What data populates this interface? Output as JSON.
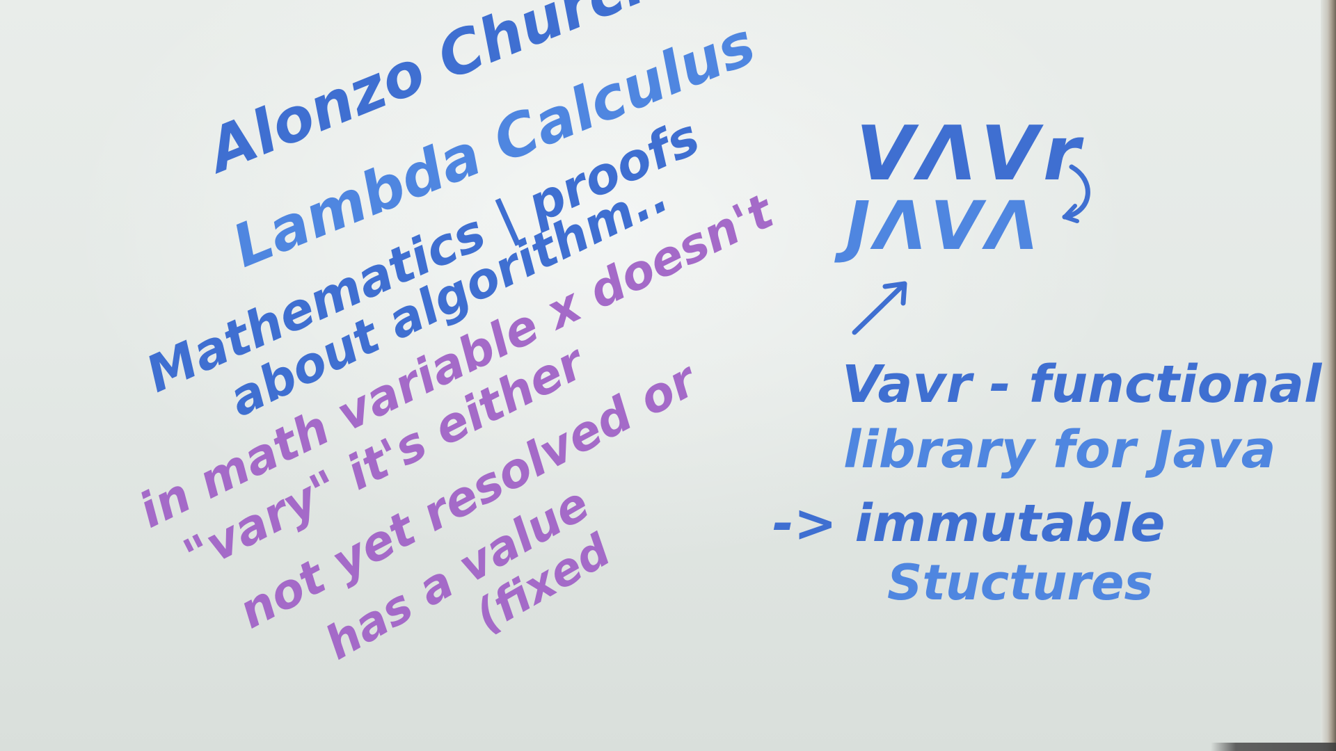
{
  "board": {
    "left_notes": {
      "line1": "Alonzo Church",
      "line2": "Lambda Calculus",
      "line3": "Mathematics | proofs",
      "line4": "about algorithm..",
      "line5": "in math variable x doesn't",
      "line6": "\"vary\" it's either",
      "line7": "not yet resolved or",
      "line8": "has a value",
      "line9": "(fixed"
    },
    "right_notes": {
      "logo_top": "VΛVr",
      "logo_bottom": "JΛVΛ",
      "line1": "Vavr - functional",
      "line2": "library for Java",
      "line3": "-> immutable",
      "line4": "Stuctures"
    },
    "colors": {
      "blue_ink": "#3f6fd1",
      "purple_ink": "#a46ac8",
      "board": "#e6ebe8"
    }
  }
}
